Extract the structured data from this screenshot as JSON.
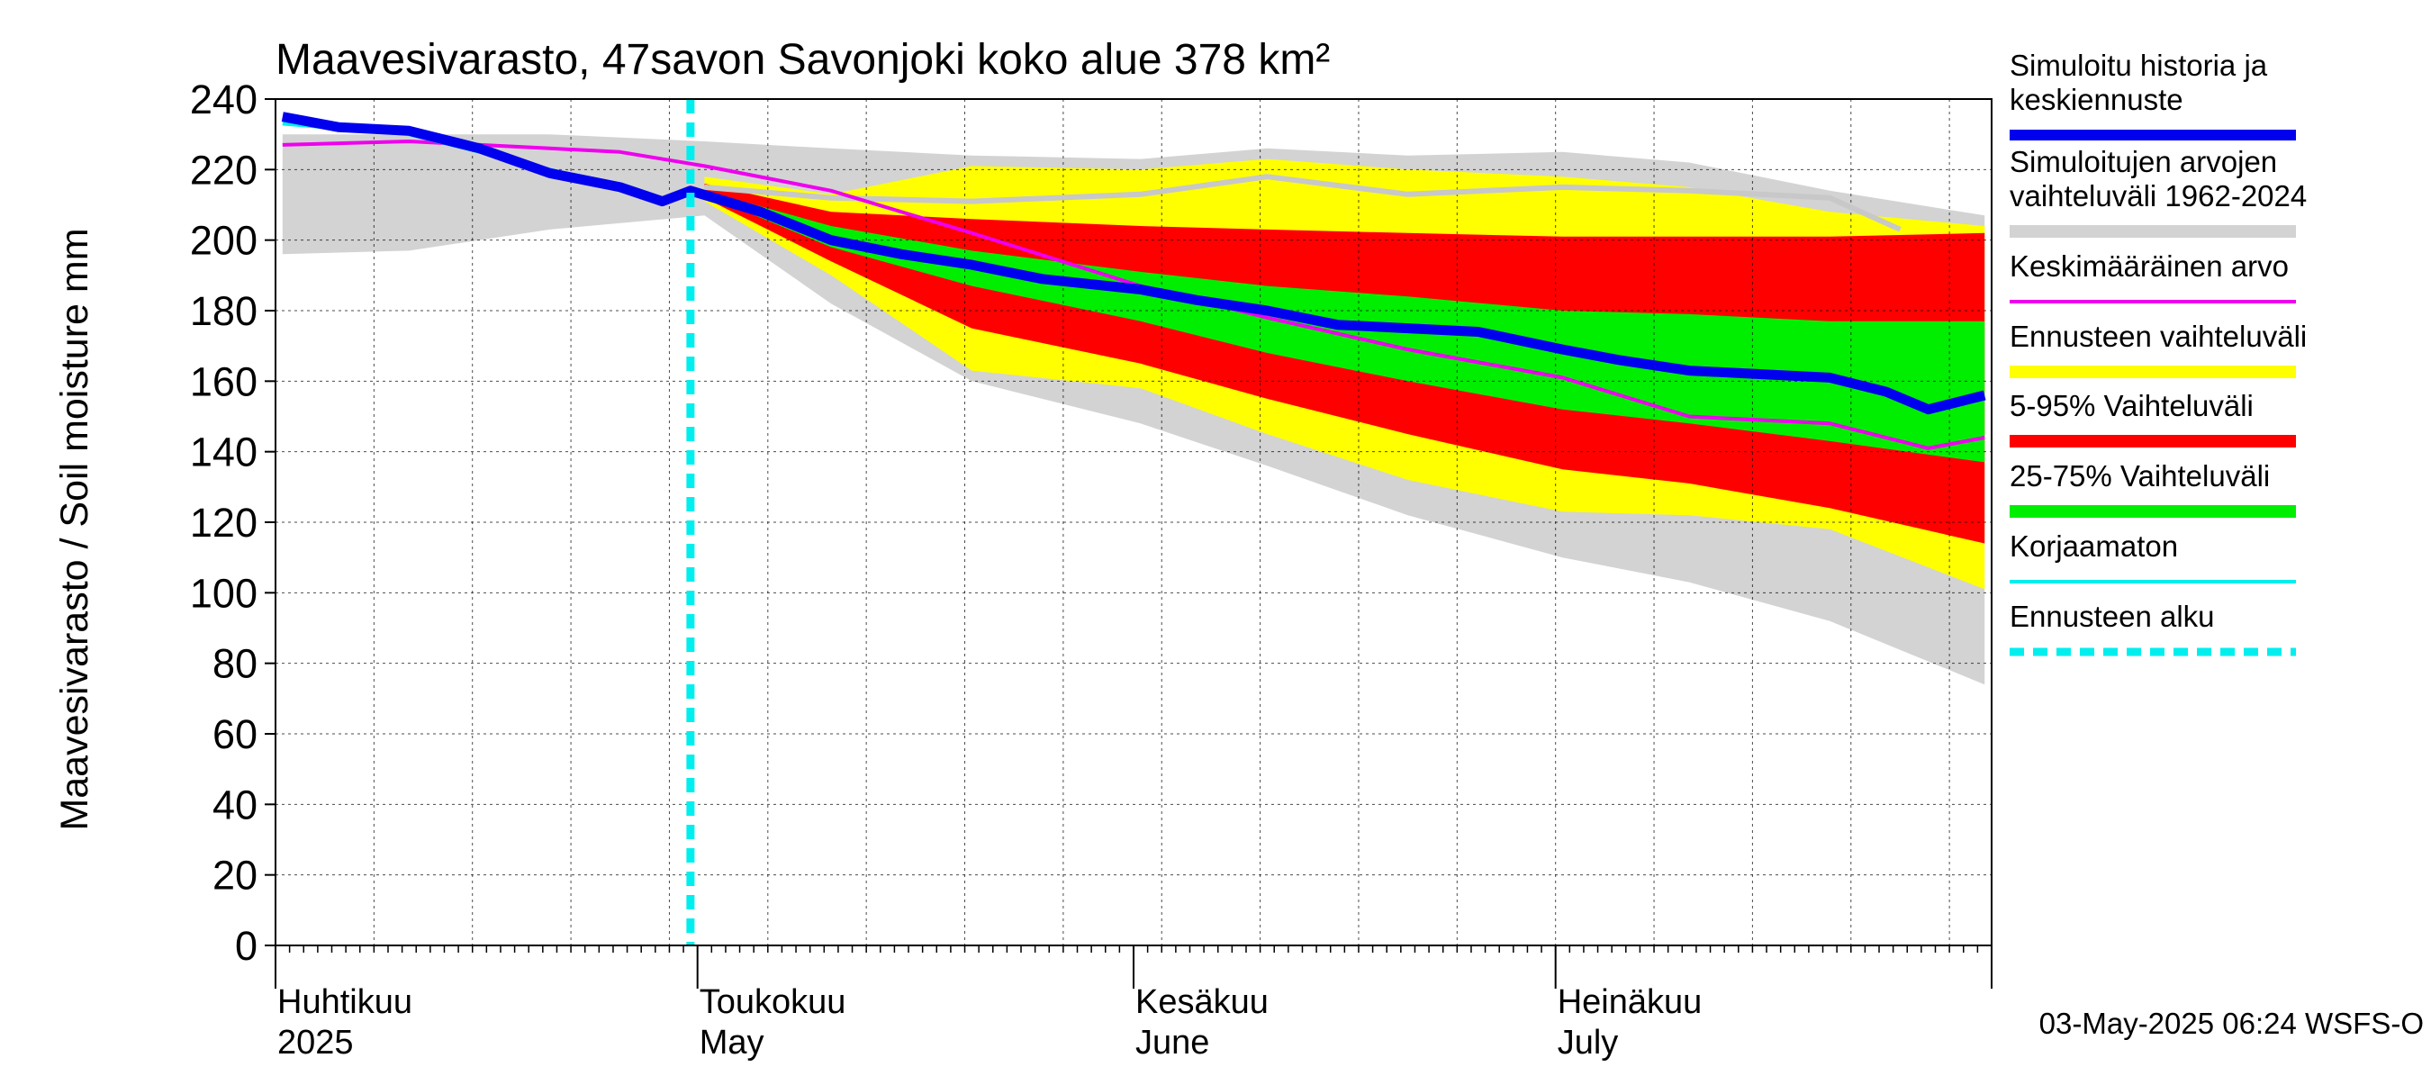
{
  "chart_data": {
    "type": "area",
    "title": "Maavesivarasto, 47savon Savonjoki koko alue 378 km²",
    "ylabel": "Maavesivarasto / Soil moisture   mm",
    "ylim": [
      0,
      240
    ],
    "yticks": [
      0,
      20,
      40,
      60,
      80,
      100,
      120,
      140,
      160,
      180,
      200,
      220,
      240
    ],
    "xlim": [
      "2025-04-01",
      "2025-07-31"
    ],
    "x_month_labels": [
      {
        "date": "2025-04-01",
        "fi": "Huhtikuu",
        "en": "2025"
      },
      {
        "date": "2025-05-01",
        "fi": "Toukokuu",
        "en": "May"
      },
      {
        "date": "2025-06-01",
        "fi": "Kesäkuu",
        "en": "June"
      },
      {
        "date": "2025-07-01",
        "fi": "Heinäkuu",
        "en": "July"
      }
    ],
    "forecast_start": "2025-04-30",
    "grid": true,
    "legend_position": "right",
    "footer": "03-May-2025 06:24 WSFS-O",
    "colors": {
      "history": "#0000ee",
      "range_hist": "#d3d3d3",
      "mean": "#ee00ee",
      "forecast_range": "#ffff00",
      "p5_95": "#ff0000",
      "p25_75": "#00ee00",
      "uncorrected": "#00eeee",
      "forecast_start": "#00eeee",
      "hist_max_line": "#c8c8c8"
    },
    "legend": [
      {
        "label_lines": [
          "Simuloitu historia ja",
          "keskiennuste"
        ],
        "key": "history"
      },
      {
        "label_lines": [
          "Simuloitujen arvojen",
          "vaihteluväli 1962-2024"
        ],
        "key": "range_hist"
      },
      {
        "label_lines": [
          "Keskimääräinen arvo"
        ],
        "key": "mean"
      },
      {
        "label_lines": [
          "Ennusteen vaihteluväli"
        ],
        "key": "forecast_range"
      },
      {
        "label_lines": [
          "5-95% Vaihteluväli"
        ],
        "key": "p5_95"
      },
      {
        "label_lines": [
          "25-75% Vaihteluväli"
        ],
        "key": "p25_75"
      },
      {
        "label_lines": [
          "Korjaamaton"
        ],
        "key": "uncorrected"
      },
      {
        "label_lines": [
          "Ennusteen alku"
        ],
        "key": "forecast_start"
      }
    ],
    "series": {
      "range_hist_upper": {
        "x": [
          "2025-04-01",
          "2025-04-10",
          "2025-04-20",
          "2025-05-01",
          "2025-05-10",
          "2025-05-20",
          "2025-06-01",
          "2025-06-10",
          "2025-06-20",
          "2025-07-01",
          "2025-07-10",
          "2025-07-20",
          "2025-07-31"
        ],
        "y": [
          230,
          230,
          230,
          228,
          226,
          224,
          223,
          226,
          224,
          225,
          222,
          214,
          207
        ]
      },
      "range_hist_lower": {
        "x": [
          "2025-04-01",
          "2025-04-10",
          "2025-04-20",
          "2025-05-01",
          "2025-05-10",
          "2025-05-20",
          "2025-06-01",
          "2025-06-10",
          "2025-06-20",
          "2025-07-01",
          "2025-07-10",
          "2025-07-20",
          "2025-07-31"
        ],
        "y": [
          196,
          197,
          203,
          207,
          182,
          160,
          148,
          136,
          122,
          110,
          103,
          92,
          74
        ]
      },
      "hist_max_line": {
        "x": [
          "2025-05-01",
          "2025-05-10",
          "2025-05-20",
          "2025-06-01",
          "2025-06-10",
          "2025-06-20",
          "2025-07-01",
          "2025-07-10",
          "2025-07-20",
          "2025-07-25"
        ],
        "y": [
          215,
          212,
          211,
          213,
          218,
          213,
          215,
          214,
          212,
          203
        ]
      },
      "forecast_range_upper": {
        "x": [
          "2025-05-01",
          "2025-05-10",
          "2025-05-20",
          "2025-06-01",
          "2025-06-10",
          "2025-06-20",
          "2025-07-01",
          "2025-07-10",
          "2025-07-20",
          "2025-07-31"
        ],
        "y": [
          218,
          213,
          221,
          220,
          223,
          220,
          218,
          215,
          208,
          204
        ]
      },
      "forecast_range_lower": {
        "x": [
          "2025-05-01",
          "2025-05-10",
          "2025-05-20",
          "2025-06-01",
          "2025-06-10",
          "2025-06-20",
          "2025-07-01",
          "2025-07-10",
          "2025-07-20",
          "2025-07-31"
        ],
        "y": [
          211,
          190,
          163,
          158,
          145,
          132,
          123,
          122,
          118,
          101
        ]
      },
      "p5_95_upper": {
        "x": [
          "2025-05-01",
          "2025-05-10",
          "2025-05-20",
          "2025-06-01",
          "2025-06-10",
          "2025-06-20",
          "2025-07-01",
          "2025-07-10",
          "2025-07-20",
          "2025-07-31"
        ],
        "y": [
          216,
          208,
          206,
          204,
          203,
          202,
          201,
          201,
          201,
          202
        ]
      },
      "p5_95_lower": {
        "x": [
          "2025-05-01",
          "2025-05-10",
          "2025-05-20",
          "2025-06-01",
          "2025-06-10",
          "2025-06-20",
          "2025-07-01",
          "2025-07-10",
          "2025-07-20",
          "2025-07-31"
        ],
        "y": [
          212,
          194,
          175,
          165,
          155,
          145,
          135,
          131,
          124,
          114
        ]
      },
      "p25_75_upper": {
        "x": [
          "2025-05-01",
          "2025-05-10",
          "2025-05-20",
          "2025-06-01",
          "2025-06-10",
          "2025-06-20",
          "2025-07-01",
          "2025-07-10",
          "2025-07-20",
          "2025-07-31"
        ],
        "y": [
          214,
          204,
          197,
          191,
          187,
          184,
          180,
          179,
          177,
          177
        ]
      },
      "p25_75_lower": {
        "x": [
          "2025-05-01",
          "2025-05-10",
          "2025-05-20",
          "2025-06-01",
          "2025-06-10",
          "2025-06-20",
          "2025-07-01",
          "2025-07-10",
          "2025-07-20",
          "2025-07-31"
        ],
        "y": [
          213,
          198,
          187,
          177,
          168,
          160,
          152,
          148,
          143,
          137
        ]
      },
      "history": {
        "x": [
          "2025-04-01",
          "2025-04-05",
          "2025-04-10",
          "2025-04-15",
          "2025-04-20",
          "2025-04-25",
          "2025-04-28",
          "2025-04-30",
          "2025-05-05",
          "2025-05-10",
          "2025-05-15",
          "2025-05-20",
          "2025-05-25",
          "2025-06-01",
          "2025-06-05",
          "2025-06-10",
          "2025-06-15",
          "2025-06-20",
          "2025-06-25",
          "2025-07-01",
          "2025-07-05",
          "2025-07-10",
          "2025-07-15",
          "2025-07-20",
          "2025-07-24",
          "2025-07-27",
          "2025-07-31"
        ],
        "y": [
          235,
          232,
          231,
          226,
          219,
          215,
          211,
          214,
          208,
          200,
          196,
          193,
          189,
          186,
          183,
          180,
          176,
          175,
          174,
          169,
          166,
          163,
          162,
          161,
          157,
          152,
          156
        ]
      },
      "mean": {
        "x": [
          "2025-04-01",
          "2025-04-10",
          "2025-04-20",
          "2025-04-25",
          "2025-05-01",
          "2025-05-10",
          "2025-05-20",
          "2025-06-01",
          "2025-06-10",
          "2025-06-20",
          "2025-07-01",
          "2025-07-10",
          "2025-07-20",
          "2025-07-27",
          "2025-07-31"
        ],
        "y": [
          227,
          228,
          226,
          225,
          221,
          214,
          202,
          187,
          178,
          169,
          161,
          150,
          148,
          141,
          144
        ]
      },
      "uncorrected": {
        "x": [
          "2025-04-01",
          "2025-04-10",
          "2025-04-20",
          "2025-04-27"
        ],
        "y": [
          233,
          230,
          220,
          213
        ]
      }
    }
  }
}
